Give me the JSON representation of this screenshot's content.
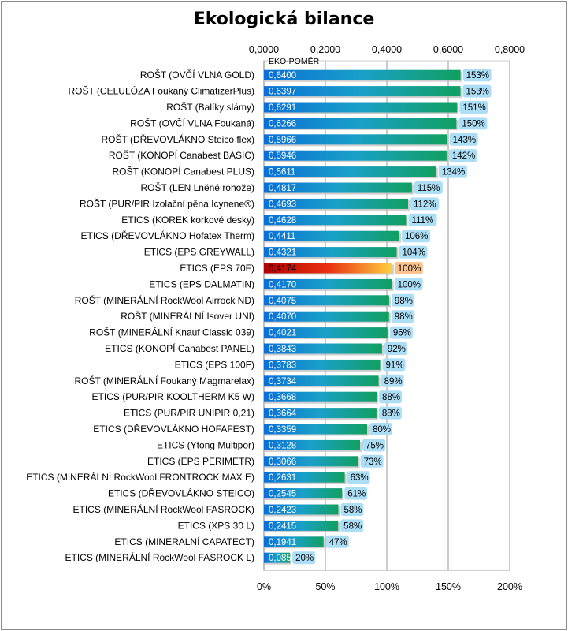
{
  "chart_data": {
    "type": "bar",
    "orientation": "horizontal",
    "title": "Ekologická bilance",
    "series_label": "EKO-POMĚR",
    "categories": [
      "ROŠT (OVČÍ VLNA GOLD)",
      "ROŠT (CELULÓZA Foukaný ClimatizerPlus)",
      "ROŠT (Balíky slámy)",
      "ROŠT (OVČÍ VLNA Foukaná)",
      "ROŠT (DŘEVOVLÁKNO Steico flex)",
      "ROŠT (KONOPÍ Canabest  BASIC)",
      "ROŠT (KONOPÍ Canabest  PLUS)",
      "ROŠT (LEN Lněné rohože)",
      "ROŠT (PUR/PIR Izolační pěna Icynene®)",
      "ETICS (KOREK korkové desky)",
      "ETICS (DŘEVOVLÁKNO Hofatex Therm)",
      "ETICS (EPS GREYWALL)",
      "ETICS (EPS 70F)",
      "ETICS (EPS DALMATIN)",
      "ROŠT (MINERÁLNÍ RockWool Airrock ND)",
      "ROŠT (MINERÁLNÍ Isover UNI)",
      "ROŠT (MINERÁLNÍ Knauf Classic 039)",
      "ETICS (KONOPÍ Canabest PANEL)",
      "ETICS (EPS 100F)",
      "ROŠT (MINERÁLNÍ Foukaný Magmarelax)",
      "ETICS (PUR/PIR KOOLTHERM K5 W)",
      "ETICS (PUR/PIR UNIPIR 0,21)",
      "ETICS (DŘEVOVLÁKNO HOFAFEST)",
      "ETICS (Ytong Multipor)",
      "ETICS (EPS PERIMETR)",
      "ETICS (MINERÁLNÍ RockWool FRONTROCK MAX E)",
      "ETICS (DŘEVOVLÁKNO STEICO)",
      "ETICS (MINERÁLNÍ RockWool FASROCK)",
      "ETICS (XPS 30 L)",
      "ETICS (MINERALNÍ CAPATECT)",
      "ETICS (MINERÁLNÍ RockWool FASROCK L)"
    ],
    "values": [
      0.64,
      0.6397,
      0.6291,
      0.6266,
      0.5966,
      0.5946,
      0.5611,
      0.4817,
      0.4693,
      0.4628,
      0.4411,
      0.4321,
      0.4174,
      0.417,
      0.4075,
      0.407,
      0.4021,
      0.3843,
      0.3783,
      0.3734,
      0.3668,
      0.3664,
      0.3359,
      0.3128,
      0.3066,
      0.2631,
      0.2545,
      0.2423,
      0.2415,
      0.1941,
      0.085
    ],
    "value_labels": [
      "0,6400",
      "0,6397",
      "0,6291",
      "0,6266",
      "0,5966",
      "0,5946",
      "0,5611",
      "0,4817",
      "0,4693",
      "0,4628",
      "0,4411",
      "0,4321",
      "0,4174",
      "0,4170",
      "0,4075",
      "0,4070",
      "0,4021",
      "0,3843",
      "0,3783",
      "0,3734",
      "0,3668",
      "0,3664",
      "0,3359",
      "0,3128",
      "0,3066",
      "0,2631",
      "0,2545",
      "0,2423",
      "0,2415",
      "0,1941",
      "0,085"
    ],
    "percent_labels": [
      "153%",
      "153%",
      "151%",
      "150%",
      "143%",
      "142%",
      "134%",
      "115%",
      "112%",
      "111%",
      "106%",
      "104%",
      "100%",
      "100%",
      "98%",
      "98%",
      "96%",
      "92%",
      "91%",
      "89%",
      "88%",
      "88%",
      "80%",
      "75%",
      "73%",
      "63%",
      "61%",
      "58%",
      "58%",
      "47%",
      "20%"
    ],
    "highlight_index": 12,
    "top_axis": {
      "ticks": [
        0,
        0.2,
        0.4,
        0.6,
        0.8
      ],
      "labels": [
        "0,0000",
        "0,2000",
        "0,4000",
        "0,6000",
        "0,8000"
      ],
      "range": [
        0,
        0.8
      ]
    },
    "bottom_axis": {
      "ticks": [
        0,
        50,
        100,
        150,
        200
      ],
      "labels": [
        "0%",
        "50%",
        "100%",
        "150%",
        "200%"
      ],
      "range": [
        0,
        200
      ]
    },
    "grid": true,
    "colors": {
      "bar_start": "#0a6fd6",
      "bar_mid": "#1aa0c8",
      "bar_end": "#10a060",
      "highlight_start": "#b00000",
      "highlight_mid": "#e83010",
      "highlight_end": "#ffd040",
      "pct_bg": "#a8dcf6",
      "pct_bg_highlight": "#fbc08a",
      "grid": "#9a9a9a"
    }
  }
}
